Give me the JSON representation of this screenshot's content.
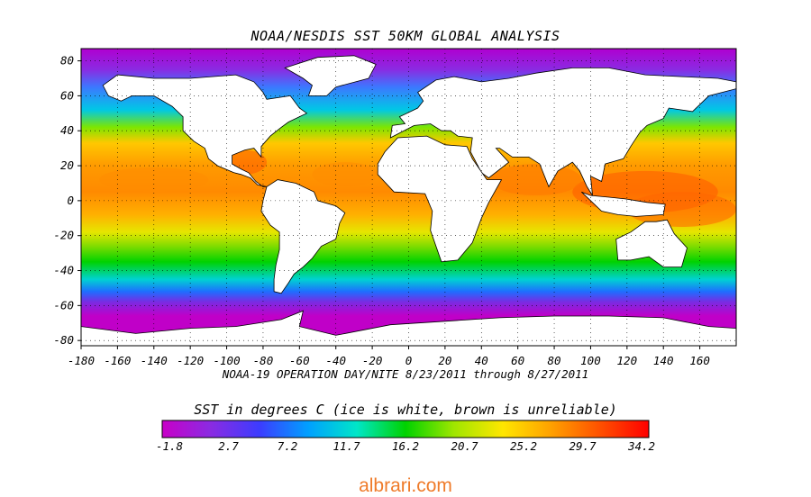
{
  "map": {
    "title": "NOAA/NESDIS SST 50KM GLOBAL ANALYSIS",
    "subtitle": "NOAA-19 OPERATION DAY/NITE  8/23/2011 through 8/27/2011",
    "projection": "equirectangular",
    "lon_range": [
      -180,
      180
    ],
    "lat_range": [
      -83,
      87
    ],
    "lon_ticks": [
      "-180",
      "-160",
      "-140",
      "-120",
      "-100",
      "-80",
      "-60",
      "-40",
      "-20",
      "0",
      "20",
      "40",
      "60",
      "80",
      "100",
      "120",
      "140",
      "160"
    ],
    "lat_ticks": [
      "80",
      "60",
      "40",
      "20",
      "0",
      "-20",
      "-40",
      "-60",
      "-80"
    ],
    "grid": "dotted",
    "land_color": "#ffffff",
    "coastline_color": "#000000"
  },
  "colorbar": {
    "title": "SST in degrees C (ice is white, brown is unreliable)",
    "tick_labels": [
      "-1.8",
      "2.7",
      "7.2",
      "11.7",
      "16.2",
      "20.7",
      "25.2",
      "29.7",
      "34.2"
    ],
    "range": [
      -1.8,
      34.2
    ],
    "colors": [
      "#c800c8",
      "#8a2be2",
      "#3c3cff",
      "#00a0ff",
      "#00e6c8",
      "#00d200",
      "#a0e600",
      "#ffe600",
      "#ffa000",
      "#ff5000",
      "#ff0000"
    ]
  },
  "watermark": "albrari.com"
}
